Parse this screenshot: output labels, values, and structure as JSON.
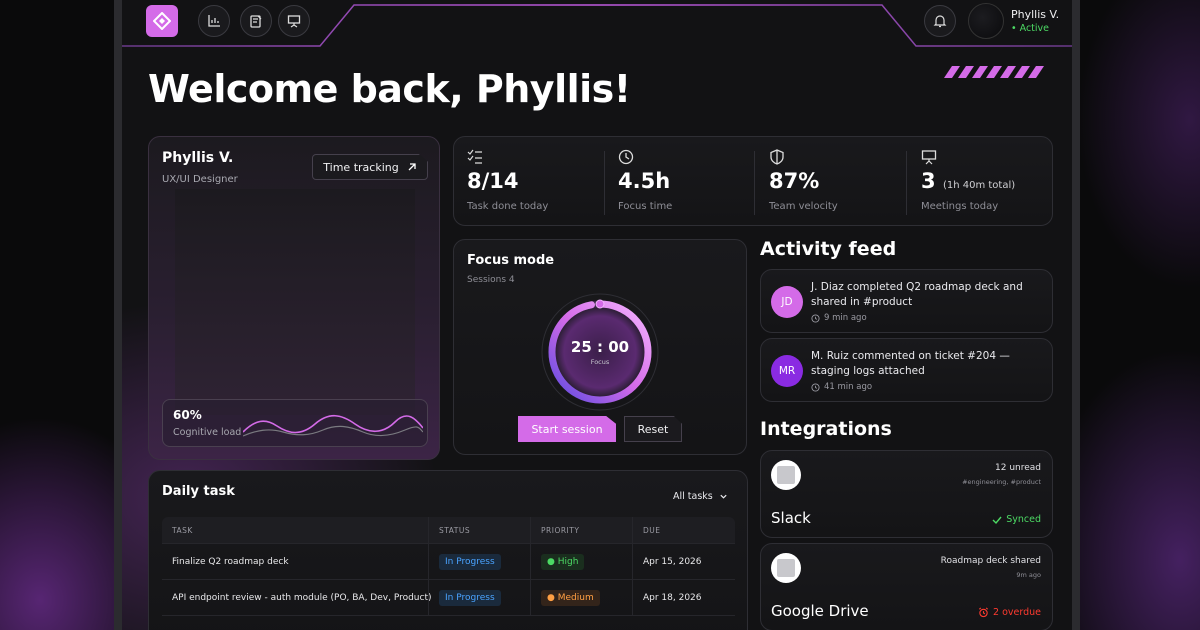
{
  "header": {
    "user_name": "Phyllis V.",
    "user_status": "• Active"
  },
  "welcome": "Welcome back, Phyllis!",
  "profile": {
    "name": "Phyllis V.",
    "role": "UX/UI Designer",
    "time_tracking_label": "Time tracking",
    "cognitive_load_value": "60%",
    "cognitive_load_label": "Cognitive load"
  },
  "stats": [
    {
      "icon": "checklist-icon",
      "value": "8/14",
      "label": "Task done today"
    },
    {
      "icon": "clock-icon",
      "value": "4.5h",
      "label": "Focus time"
    },
    {
      "icon": "shield-icon",
      "value": "87%",
      "label": "Team velocity"
    },
    {
      "icon": "presentation-icon",
      "value": "3",
      "value_extra": "(1h 40m total)",
      "label": "Meetings today"
    }
  ],
  "focus": {
    "title": "Focus mode",
    "sessions": "Sessions 4",
    "timer": "25 : 00",
    "timer_label": "Focus",
    "progress": 0.97,
    "start_label": "Start session",
    "reset_label": "Reset"
  },
  "activity": {
    "title": "Activity feed",
    "items": [
      {
        "initials": "JD",
        "color": "#d46be8",
        "text": "J. Diaz completed Q2 roadmap deck and shared in #product",
        "time": "9 min ago"
      },
      {
        "initials": "MR",
        "color": "#8a2be2",
        "text": "M. Ruiz commented on ticket #204 — staging logs attached",
        "time": "41 min ago"
      }
    ]
  },
  "integrations": {
    "title": "Integrations",
    "items": [
      {
        "name": "Slack",
        "top": "12 unread",
        "sub": "#engineering, #product",
        "status": "Synced",
        "status_color": "#4cd964"
      },
      {
        "name": "Google Drive",
        "top": "Roadmap deck shared",
        "sub": "9m ago",
        "status": "2 overdue",
        "status_color": "#ff3b30"
      }
    ]
  },
  "tasks": {
    "title": "Daily task",
    "filter": "All tasks",
    "columns": [
      "TASK",
      "STATUS",
      "PRIORITY",
      "DUE"
    ],
    "rows": [
      {
        "task": "Finalize Q2 roadmap deck",
        "status": "In Progress",
        "priority": "High",
        "due": "Apr 15, 2026"
      },
      {
        "task": "API endpoint review - auth module (PO, BA, Dev, Product)",
        "status": "In Progress",
        "priority": "Medium",
        "due": "Apr 18, 2026"
      }
    ]
  }
}
